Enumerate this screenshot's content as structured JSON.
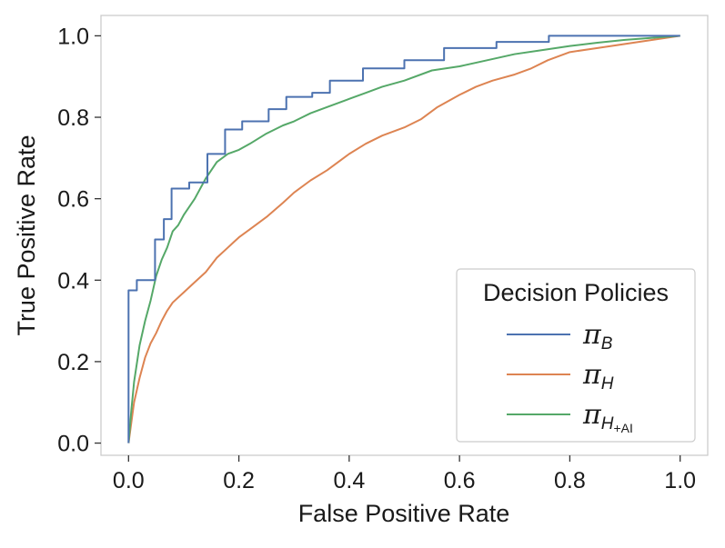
{
  "chart_data": {
    "type": "line",
    "title": "",
    "xlabel": "False Positive Rate",
    "ylabel": "True Positive Rate",
    "xlim": [
      -0.05,
      1.05
    ],
    "ylim": [
      -0.03,
      1.05
    ],
    "xticks": [
      0.0,
      0.2,
      0.4,
      0.6,
      0.8,
      1.0
    ],
    "yticks": [
      0.0,
      0.2,
      0.4,
      0.6,
      0.8,
      1.0
    ],
    "xtick_labels": [
      "0.0",
      "0.2",
      "0.4",
      "0.6",
      "0.8",
      "1.0"
    ],
    "ytick_labels": [
      "0.0",
      "0.2",
      "0.4",
      "0.6",
      "0.8",
      "1.0"
    ],
    "grid": false,
    "legend": {
      "title": "Decision Policies",
      "placement": "lower-right"
    },
    "series": [
      {
        "name": "π_B",
        "label_main": "π",
        "label_sub": "B",
        "label_subsub": "",
        "color": "#4c72b0",
        "step": true,
        "x": [
          0.0,
          0.0,
          0.015,
          0.015,
          0.048,
          0.048,
          0.064,
          0.064,
          0.078,
          0.078,
          0.11,
          0.11,
          0.143,
          0.143,
          0.175,
          0.175,
          0.206,
          0.206,
          0.254,
          0.254,
          0.286,
          0.286,
          0.333,
          0.333,
          0.365,
          0.365,
          0.425,
          0.425,
          0.5,
          0.5,
          0.572,
          0.572,
          0.667,
          0.667,
          0.762,
          0.762,
          1.0
        ],
        "y": [
          0.0,
          0.375,
          0.375,
          0.4,
          0.4,
          0.5,
          0.5,
          0.55,
          0.55,
          0.625,
          0.625,
          0.64,
          0.64,
          0.71,
          0.71,
          0.77,
          0.77,
          0.79,
          0.79,
          0.82,
          0.82,
          0.85,
          0.85,
          0.86,
          0.86,
          0.89,
          0.89,
          0.92,
          0.92,
          0.94,
          0.94,
          0.97,
          0.97,
          0.985,
          0.985,
          1.0,
          1.0
        ]
      },
      {
        "name": "π_H",
        "label_main": "π",
        "label_sub": "H",
        "label_subsub": "",
        "color": "#dd8452",
        "step": false,
        "x": [
          0.0,
          0.005,
          0.01,
          0.02,
          0.03,
          0.04,
          0.05,
          0.06,
          0.07,
          0.08,
          0.1,
          0.12,
          0.14,
          0.16,
          0.18,
          0.2,
          0.22,
          0.25,
          0.28,
          0.3,
          0.33,
          0.36,
          0.4,
          0.43,
          0.46,
          0.5,
          0.53,
          0.56,
          0.6,
          0.63,
          0.66,
          0.7,
          0.73,
          0.76,
          0.8,
          0.85,
          0.9,
          0.95,
          1.0
        ],
        "y": [
          0.0,
          0.05,
          0.1,
          0.16,
          0.21,
          0.245,
          0.27,
          0.3,
          0.325,
          0.345,
          0.37,
          0.395,
          0.42,
          0.455,
          0.48,
          0.505,
          0.525,
          0.555,
          0.59,
          0.615,
          0.645,
          0.67,
          0.71,
          0.735,
          0.755,
          0.775,
          0.795,
          0.825,
          0.855,
          0.875,
          0.89,
          0.905,
          0.92,
          0.94,
          0.96,
          0.97,
          0.98,
          0.99,
          1.0
        ]
      },
      {
        "name": "π_H+AI",
        "label_main": "π",
        "label_sub": "H",
        "label_subsub": "+AI",
        "color": "#55a868",
        "step": false,
        "x": [
          0.0,
          0.005,
          0.01,
          0.02,
          0.03,
          0.04,
          0.05,
          0.06,
          0.07,
          0.08,
          0.09,
          0.1,
          0.12,
          0.14,
          0.16,
          0.18,
          0.2,
          0.22,
          0.25,
          0.28,
          0.3,
          0.33,
          0.36,
          0.4,
          0.43,
          0.46,
          0.5,
          0.55,
          0.6,
          0.65,
          0.7,
          0.75,
          0.8,
          0.85,
          0.9,
          0.95,
          1.0
        ],
        "y": [
          0.0,
          0.08,
          0.15,
          0.24,
          0.3,
          0.35,
          0.41,
          0.45,
          0.48,
          0.52,
          0.535,
          0.56,
          0.6,
          0.65,
          0.69,
          0.71,
          0.72,
          0.735,
          0.76,
          0.78,
          0.79,
          0.81,
          0.825,
          0.845,
          0.86,
          0.875,
          0.89,
          0.915,
          0.925,
          0.94,
          0.955,
          0.965,
          0.975,
          0.983,
          0.99,
          0.995,
          1.0
        ]
      }
    ]
  }
}
